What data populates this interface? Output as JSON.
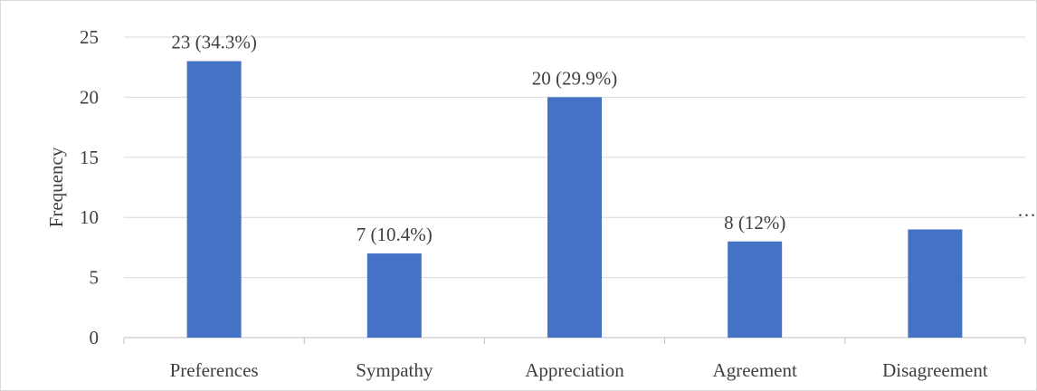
{
  "chart_data": {
    "type": "bar",
    "categories": [
      "Preferences",
      "Sympathy",
      "Appreciation",
      "Agreement",
      "Disagreement"
    ],
    "values": [
      23,
      7,
      20,
      8,
      9
    ],
    "data_labels": [
      "23 (34.3%)",
      "7 (10.4%)",
      "20 (29.9%)",
      "8 (12%)",
      "…"
    ],
    "title": "",
    "xlabel": "",
    "ylabel": "Frequency",
    "ylim": [
      0,
      25
    ],
    "yticks": [
      0,
      5,
      10,
      15,
      20,
      25
    ],
    "grid": true,
    "bar_color": "#4472c4",
    "grid_color": "#d9d9d9",
    "text_color": "#404040"
  }
}
